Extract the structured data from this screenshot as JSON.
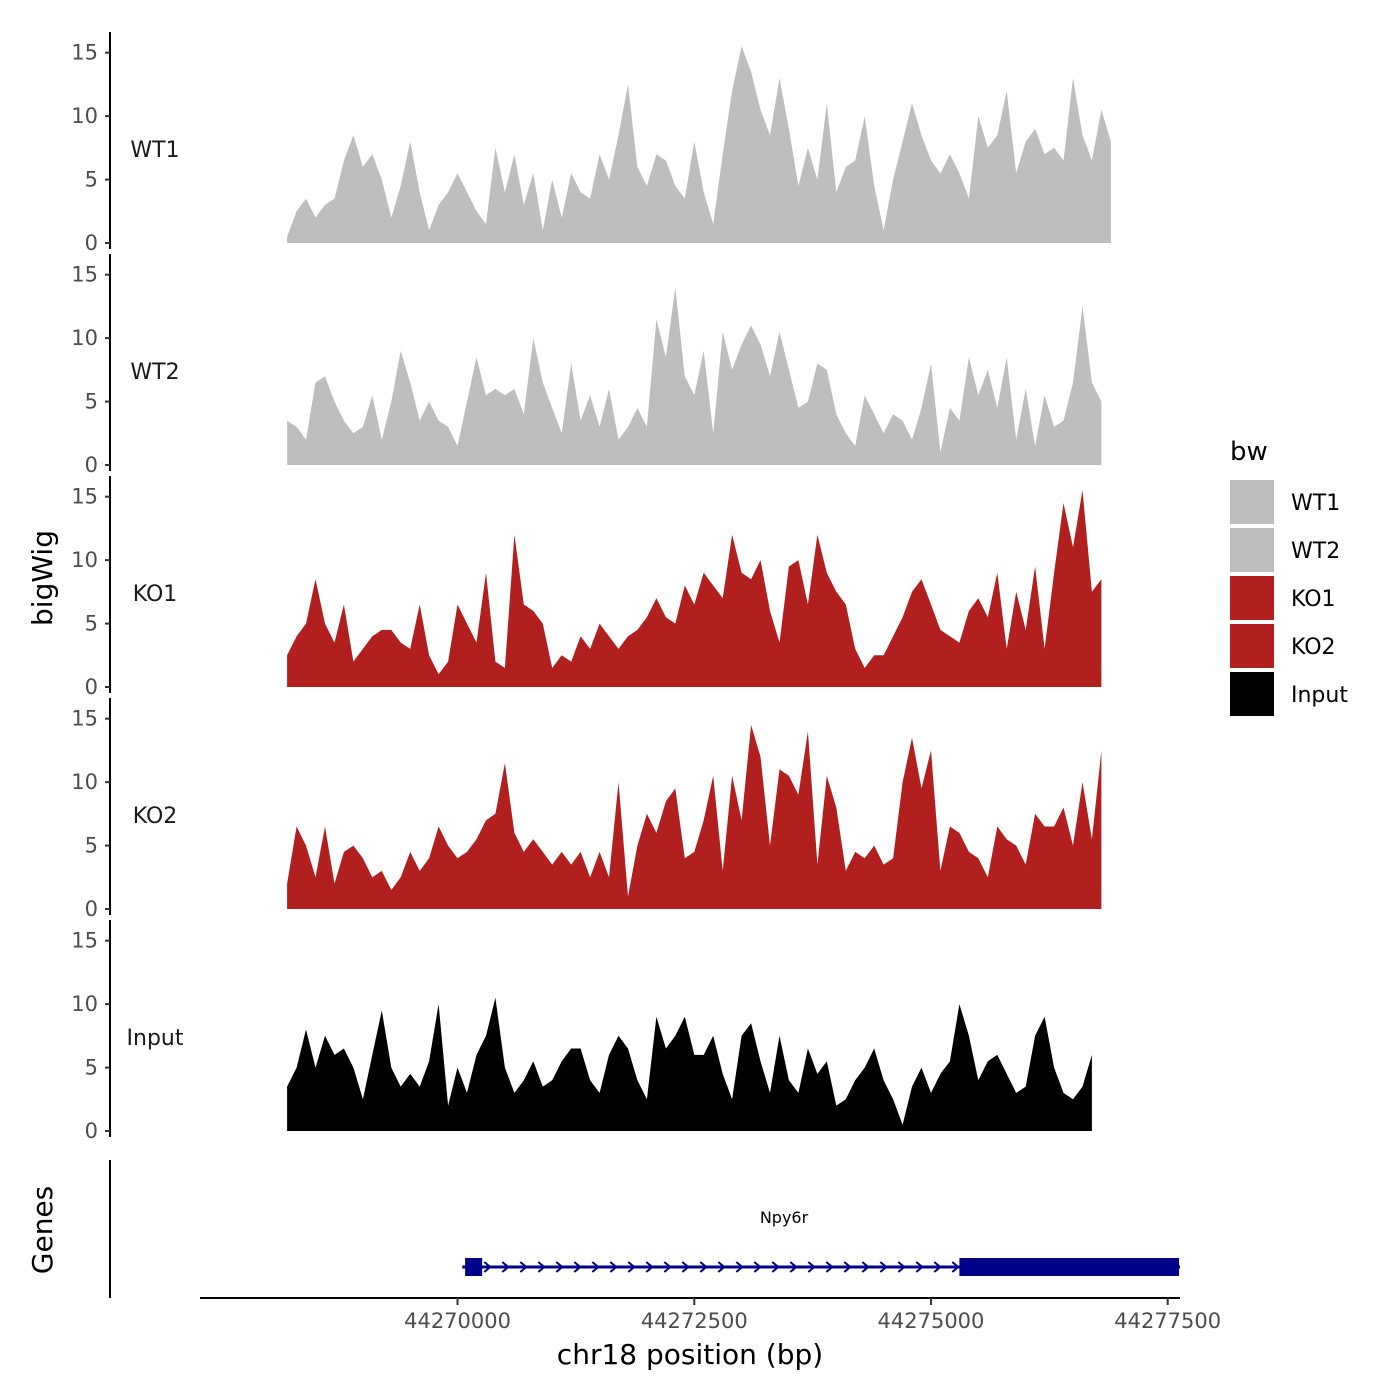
{
  "chart_data": {
    "type": "area",
    "xlabel": "chr18 position (bp)",
    "ylabel": "bigWig",
    "genes_label": "Genes",
    "xlim": [
      44267280,
      44277630
    ],
    "ylim": [
      0,
      16
    ],
    "x_ticks": [
      44270000,
      44272500,
      44275000,
      44277500
    ],
    "x_tick_labels": [
      "44270000",
      "44272500",
      "44275000",
      "44277500"
    ],
    "y_ticks": [
      0,
      5,
      10,
      15
    ],
    "y_tick_labels": [
      "0",
      "5",
      "10",
      "15"
    ],
    "legend": {
      "title": "bw",
      "entries": [
        {
          "name": "WT1",
          "color": "#bebebe"
        },
        {
          "name": "WT2",
          "color": "#bebebe"
        },
        {
          "name": "KO1",
          "color": "#b21f1f"
        },
        {
          "name": "KO2",
          "color": "#b21f1f"
        },
        {
          "name": "Input",
          "color": "#000000"
        }
      ]
    },
    "x_start": 44268200,
    "x_step": 100,
    "series": [
      {
        "name": "WT1",
        "color": "#bebebe",
        "values": [
          0.5,
          2.5,
          3.5,
          2.0,
          3.0,
          3.5,
          6.5,
          8.5,
          6.0,
          7.0,
          5.0,
          2.0,
          4.5,
          8.0,
          4.0,
          1.0,
          3.0,
          4.0,
          5.5,
          4.0,
          2.5,
          1.5,
          7.5,
          4.0,
          7.0,
          3.0,
          5.5,
          1.0,
          5.0,
          2.0,
          5.5,
          4.0,
          3.5,
          7.0,
          5.0,
          8.5,
          12.5,
          6.0,
          4.5,
          7.0,
          6.5,
          4.5,
          3.5,
          8.0,
          4.0,
          1.5,
          7.0,
          12.0,
          15.5,
          13.5,
          10.5,
          8.5,
          13.0,
          9.0,
          4.5,
          7.5,
          5.0,
          11.0,
          4.0,
          6.0,
          6.5,
          10.0,
          4.5,
          1.0,
          5.0,
          8.0,
          11.0,
          8.5,
          6.5,
          5.5,
          7.0,
          5.5,
          3.5,
          10.0,
          7.5,
          8.5,
          12.0,
          5.5,
          8.0,
          9.0,
          7.0,
          7.5,
          6.5,
          13.0,
          8.5,
          6.5,
          10.5,
          8.0
        ]
      },
      {
        "name": "WT2",
        "color": "#bebebe",
        "values": [
          3.5,
          3.0,
          2.0,
          6.5,
          7.0,
          5.0,
          3.5,
          2.5,
          3.0,
          5.5,
          2.0,
          5.0,
          9.0,
          6.5,
          3.5,
          5.0,
          3.5,
          3.0,
          1.5,
          5.0,
          8.5,
          5.5,
          6.0,
          5.5,
          6.0,
          4.0,
          10.0,
          6.5,
          4.5,
          2.5,
          8.0,
          3.5,
          5.5,
          3.0,
          6.0,
          2.0,
          3.0,
          4.5,
          3.0,
          11.5,
          8.5,
          14.0,
          7.0,
          5.5,
          9.0,
          2.5,
          10.5,
          7.5,
          9.5,
          11.0,
          9.5,
          7.0,
          10.5,
          7.5,
          4.5,
          5.0,
          8.0,
          7.5,
          4.0,
          2.5,
          1.5,
          5.5,
          4.0,
          2.5,
          4.0,
          3.5,
          2.0,
          4.5,
          8.0,
          1.0,
          4.5,
          3.5,
          8.5,
          5.5,
          7.5,
          4.5,
          8.5,
          2.0,
          6.0,
          1.5,
          5.5,
          3.0,
          3.5,
          6.5,
          12.5,
          6.5,
          5.0
        ]
      },
      {
        "name": "KO1",
        "color": "#b21f1f",
        "values": [
          2.5,
          4.0,
          5.0,
          8.5,
          5.0,
          3.5,
          6.5,
          2.0,
          3.0,
          4.0,
          4.5,
          4.5,
          3.5,
          3.0,
          6.5,
          2.5,
          1.0,
          2.0,
          6.5,
          5.0,
          3.5,
          9.0,
          2.0,
          1.5,
          12.0,
          6.5,
          6.0,
          5.0,
          1.5,
          2.5,
          2.0,
          4.0,
          3.0,
          5.0,
          4.0,
          3.0,
          4.0,
          4.5,
          5.5,
          7.0,
          5.5,
          5.0,
          8.0,
          6.5,
          9.0,
          8.0,
          7.0,
          12.0,
          9.0,
          8.5,
          10.0,
          6.0,
          3.5,
          9.5,
          10.0,
          6.5,
          12.0,
          9.0,
          7.5,
          6.5,
          3.0,
          1.5,
          2.5,
          2.5,
          4.0,
          5.5,
          7.5,
          8.5,
          6.5,
          4.5,
          4.0,
          3.5,
          6.0,
          7.0,
          5.5,
          9.0,
          3.0,
          7.5,
          4.5,
          9.5,
          3.0,
          9.0,
          14.5,
          11.0,
          15.5,
          7.5,
          8.5
        ]
      },
      {
        "name": "KO2",
        "color": "#b21f1f",
        "values": [
          2.0,
          6.5,
          5.0,
          2.5,
          6.5,
          2.0,
          4.5,
          5.0,
          4.0,
          2.5,
          3.0,
          1.5,
          2.5,
          4.5,
          3.0,
          4.0,
          6.5,
          5.0,
          4.0,
          4.5,
          5.5,
          7.0,
          7.5,
          11.5,
          6.0,
          4.5,
          5.5,
          4.5,
          3.5,
          4.5,
          3.5,
          4.5,
          2.5,
          4.5,
          2.5,
          10.0,
          1.0,
          5.0,
          7.5,
          6.0,
          8.5,
          9.5,
          4.0,
          4.5,
          7.0,
          10.5,
          3.0,
          10.5,
          7.0,
          14.5,
          12.0,
          5.0,
          11.0,
          10.5,
          9.0,
          14.0,
          3.5,
          10.5,
          8.0,
          3.0,
          4.5,
          4.0,
          5.0,
          3.5,
          4.0,
          10.0,
          13.5,
          9.5,
          12.5,
          3.0,
          6.5,
          6.0,
          4.5,
          4.0,
          2.5,
          6.5,
          5.5,
          5.0,
          3.5,
          7.5,
          6.5,
          6.5,
          8.0,
          5.0,
          10.0,
          5.5,
          12.5
        ]
      },
      {
        "name": "Input",
        "color": "#000000",
        "values": [
          3.5,
          5.0,
          8.0,
          5.0,
          7.5,
          6.0,
          6.5,
          5.0,
          2.5,
          6.0,
          9.5,
          5.0,
          3.5,
          4.5,
          3.5,
          5.5,
          10.0,
          2.0,
          5.0,
          3.0,
          6.0,
          7.5,
          10.5,
          5.0,
          3.0,
          4.0,
          5.5,
          3.5,
          4.0,
          5.5,
          6.5,
          6.5,
          4.0,
          3.0,
          6.0,
          7.5,
          6.5,
          4.0,
          2.5,
          9.0,
          6.5,
          7.5,
          9.0,
          6.0,
          6.0,
          7.5,
          4.5,
          2.5,
          7.5,
          8.5,
          5.5,
          3.0,
          7.5,
          4.0,
          3.0,
          6.5,
          4.5,
          5.5,
          2.0,
          2.5,
          4.0,
          5.0,
          6.5,
          4.0,
          2.5,
          0.5,
          3.5,
          5.0,
          3.0,
          4.5,
          5.5,
          10.0,
          7.5,
          4.0,
          5.5,
          6.0,
          4.5,
          3.0,
          3.5,
          7.5,
          9.0,
          5.0,
          3.0,
          2.5,
          3.5,
          6.0
        ]
      }
    ],
    "gene": {
      "name": "Npy6r",
      "start": 44270050,
      "end": 44277630,
      "strand": "+",
      "exons": [
        [
          44270080,
          44270260
        ],
        [
          44275300,
          44277620
        ]
      ],
      "color": "#00008b"
    }
  }
}
